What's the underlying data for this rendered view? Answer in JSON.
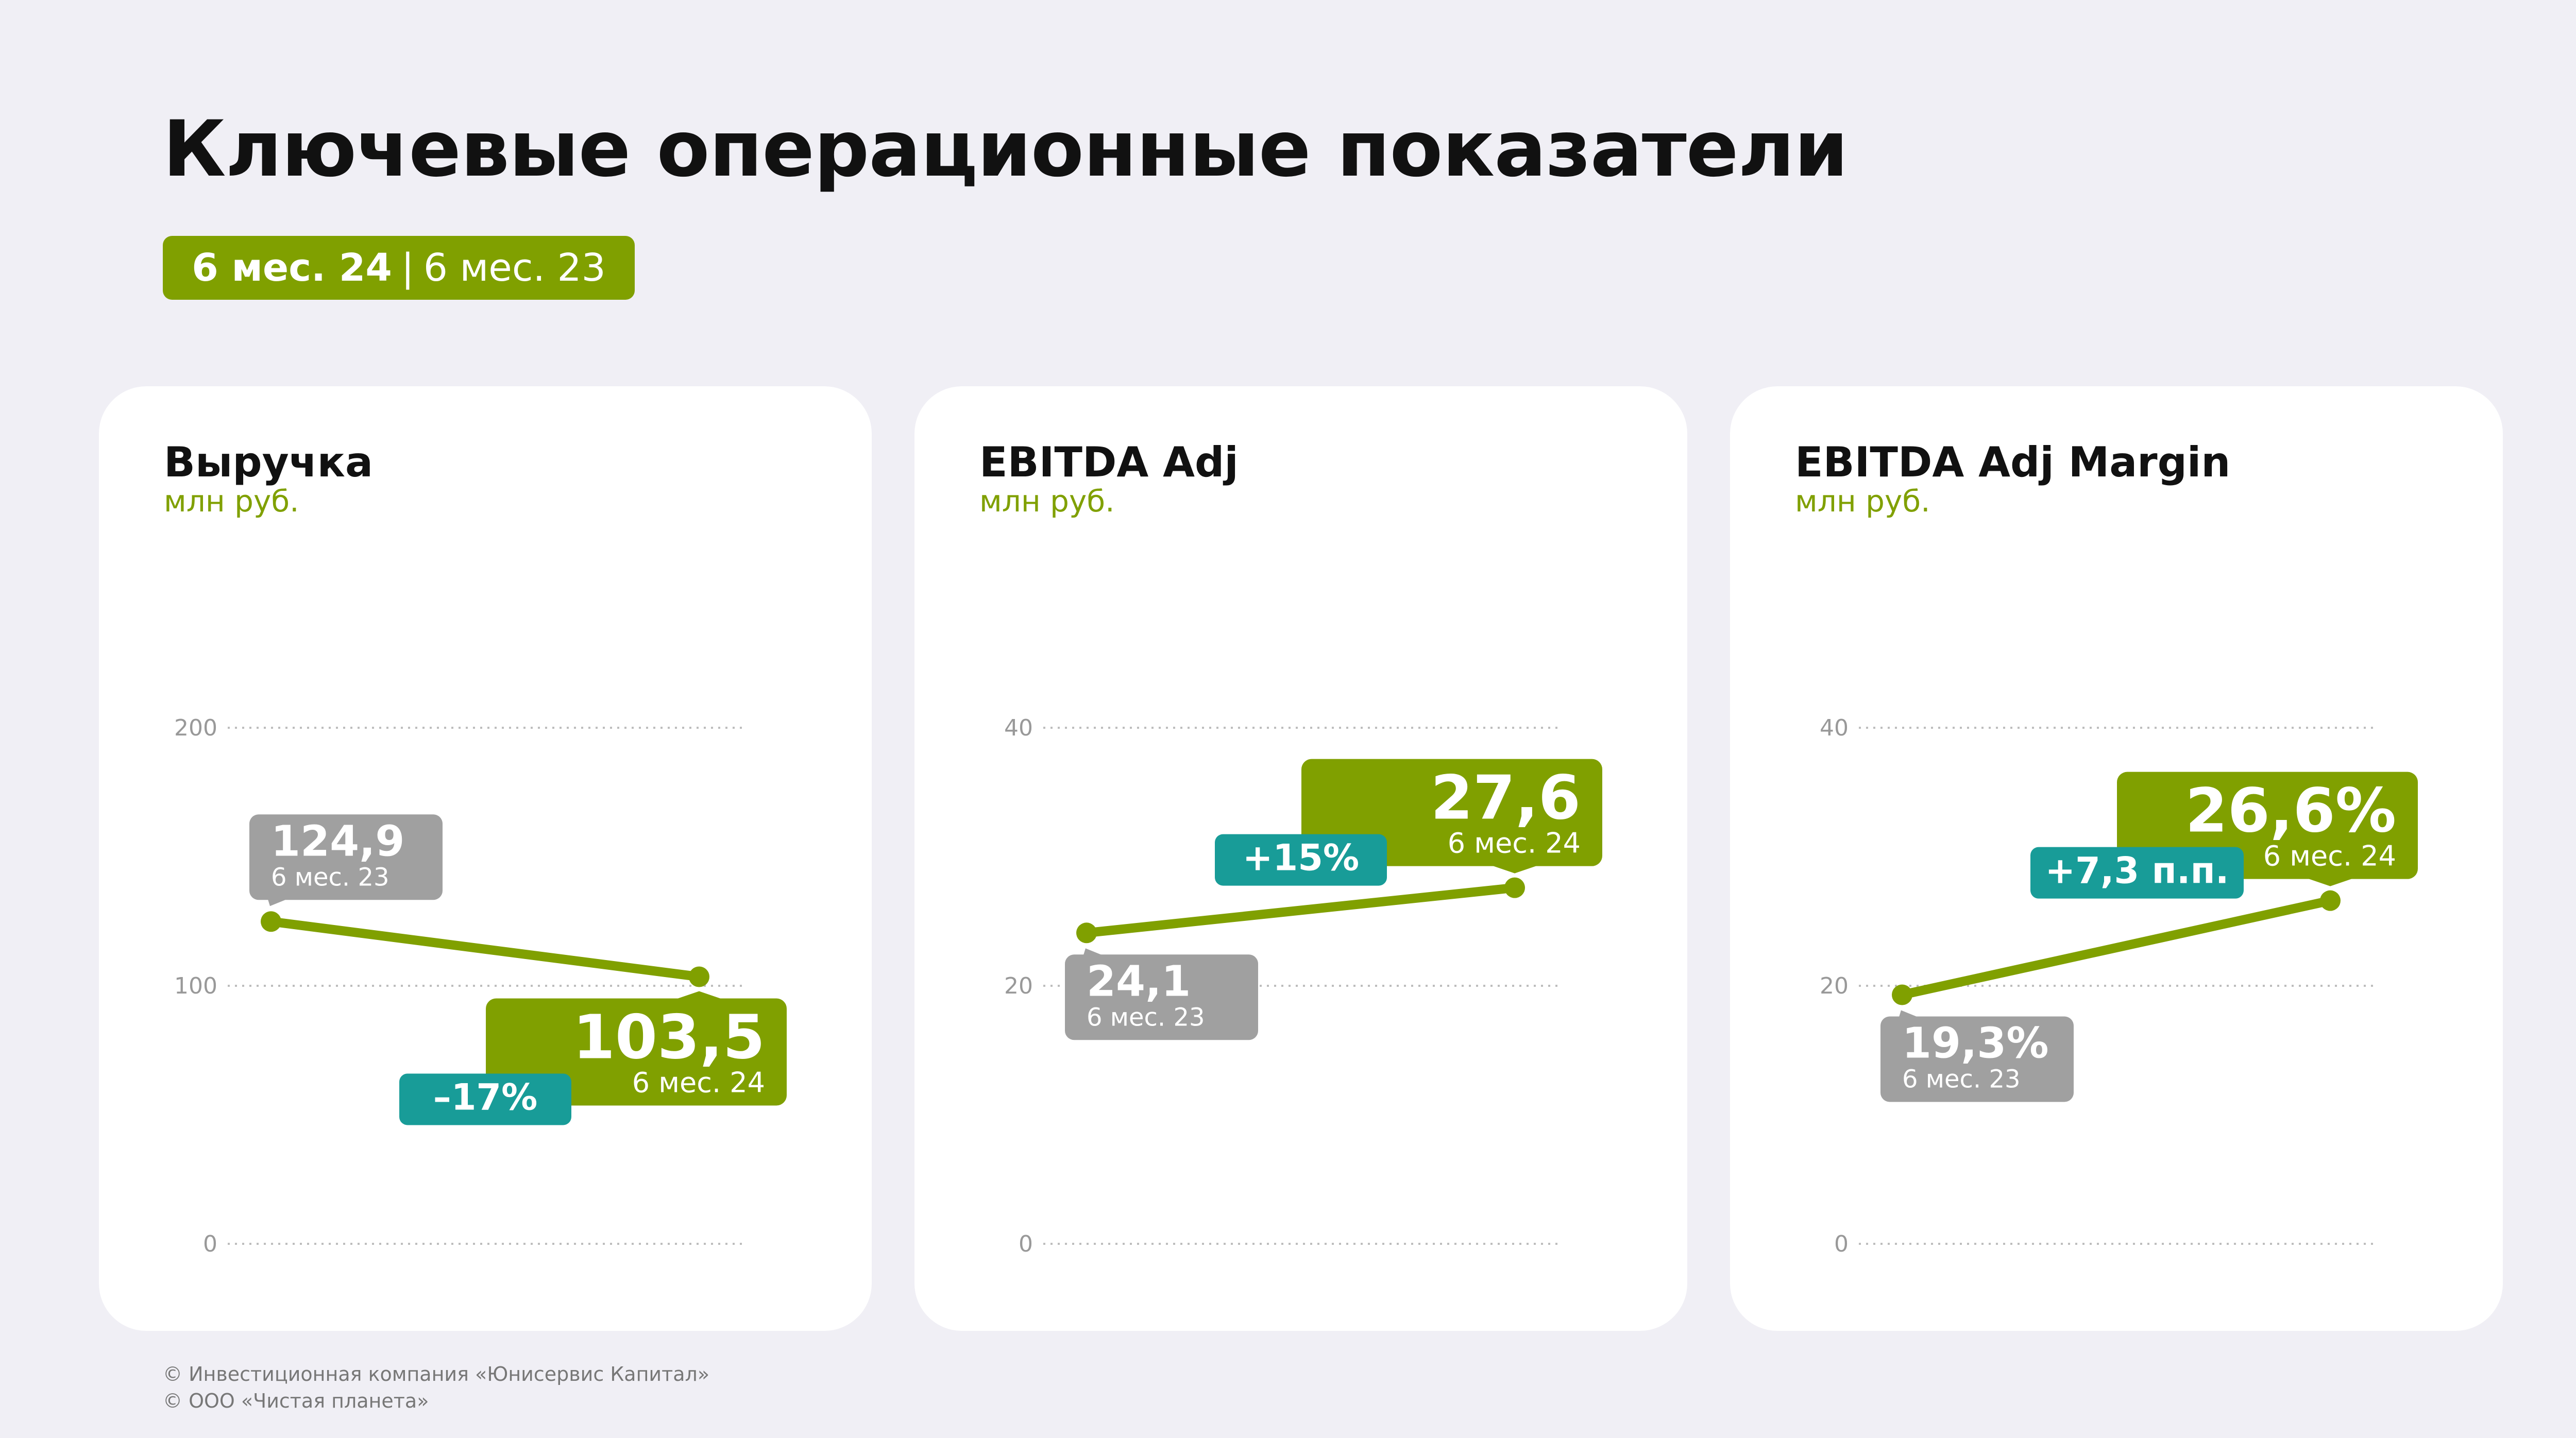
{
  "page": {
    "title": "Ключевые операционные показатели",
    "period": {
      "current": "6 мес. 24",
      "separator": "|",
      "previous": "6 мес. 23"
    },
    "footer": [
      "© Инвестиционная компания «Юнисервис Капитал»",
      "© ООО «Чистая планета»"
    ]
  },
  "colors": {
    "green": "#80a000",
    "teal": "#189c98",
    "gray": "#a0a0a0",
    "grid": "#bdbdbd",
    "tick": "#999999",
    "background": "#f0eff5"
  },
  "chart_data": [
    {
      "type": "line",
      "title": "Выручка",
      "ylabel": "млн руб.",
      "ylim": [
        0,
        200
      ],
      "yticks": [
        {
          "value": 0,
          "label": "0"
        },
        {
          "value": 100,
          "label": "100"
        },
        {
          "value": 200,
          "label": "200"
        }
      ],
      "points": [
        {
          "period": "6 мес. 23",
          "value": 124.9,
          "label": "124,9"
        },
        {
          "period": "6 мес. 24",
          "value": 103.5,
          "label": "103,5"
        }
      ],
      "change": "–17%",
      "previous_box": "above",
      "current_box": "below"
    },
    {
      "type": "line",
      "title": "EBITDA Adj",
      "ylabel": "млн руб.",
      "ylim": [
        0,
        40
      ],
      "yticks": [
        {
          "value": 0,
          "label": "0"
        },
        {
          "value": 20,
          "label": "20"
        },
        {
          "value": 40,
          "label": "40"
        }
      ],
      "points": [
        {
          "period": "6 мес. 23",
          "value": 24.1,
          "label": "24,1"
        },
        {
          "period": "6 мес. 24",
          "value": 27.6,
          "label": "27,6"
        }
      ],
      "change": "+15%",
      "previous_box": "below",
      "current_box": "above"
    },
    {
      "type": "line",
      "title": "EBITDA Adj Margin",
      "ylabel": "млн руб.",
      "ylim": [
        0,
        40
      ],
      "yticks": [
        {
          "value": 0,
          "label": "0"
        },
        {
          "value": 20,
          "label": "20"
        },
        {
          "value": 40,
          "label": "40"
        }
      ],
      "points": [
        {
          "period": "6 мес. 23",
          "value": 19.3,
          "label": "19,3%"
        },
        {
          "period": "6 мес. 24",
          "value": 26.6,
          "label": "26,6%"
        }
      ],
      "change": "+7,3 п.п.",
      "previous_box": "below",
      "current_box": "above"
    }
  ]
}
